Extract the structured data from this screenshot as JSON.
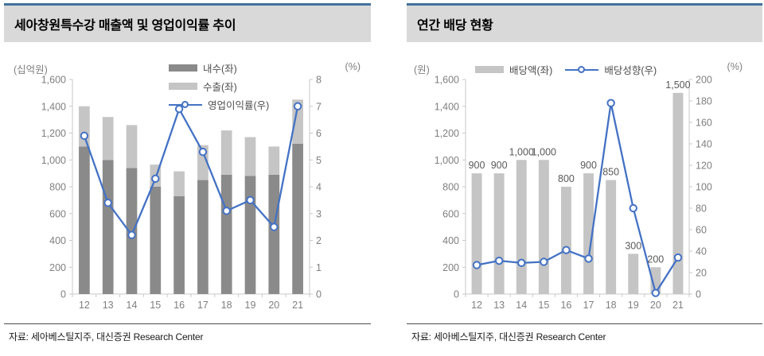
{
  "style": {
    "header_bg": "#d9d9d9",
    "header_accent_line": "#41719c",
    "axis_line_color": "#c9c9c9",
    "tick_text_color": "#7f7f7f",
    "data_label_color": "#595959",
    "line_color": "#4472c4",
    "dark_bar_color": "#8a8a8a",
    "light_bar_color": "#c5c5c5"
  },
  "panels": [
    {
      "title": "세아창원특수강 매출액 및 영업이익률 추이",
      "source": "자료: 세아베스틸지주, 대신증권 Research Center",
      "left_axis_unit": "(십억원)",
      "right_axis_unit": "(%)",
      "legend": [
        {
          "key": "domestic",
          "type": "bar",
          "color": "#8a8a8a",
          "label": "내수(좌)"
        },
        {
          "key": "export",
          "type": "bar",
          "color": "#c5c5c5",
          "label": "수출(좌)"
        },
        {
          "key": "operating-margin",
          "type": "line",
          "color": "#4472c4",
          "label": "영업이익률(우)"
        }
      ],
      "chart_data": {
        "type": "bar",
        "subtype": "stacked-bar-with-line",
        "categories": [
          "12",
          "13",
          "14",
          "15",
          "16",
          "17",
          "18",
          "19",
          "20",
          "21"
        ],
        "series": [
          {
            "key": "domestic",
            "name": "내수(좌)",
            "kind": "bar",
            "axis": "left",
            "color": "#8a8a8a",
            "values": [
              1100,
              1000,
              940,
              800,
              730,
              850,
              890,
              880,
              890,
              1120
            ]
          },
          {
            "key": "export",
            "name": "수출(좌)",
            "kind": "bar",
            "axis": "left",
            "color": "#c5c5c5",
            "values": [
              300,
              320,
              320,
              165,
              185,
              260,
              330,
              290,
              210,
              330
            ]
          },
          {
            "key": "operating-margin",
            "name": "영업이익률(우)",
            "kind": "line",
            "axis": "right",
            "color": "#4472c4",
            "values": [
              5.9,
              3.4,
              2.2,
              4.3,
              6.9,
              5.3,
              3.1,
              3.5,
              2.5,
              7.0
            ]
          }
        ],
        "left_axis": {
          "label": "(십억원)",
          "min": 0,
          "max": 1600,
          "tick_step": 200,
          "ticks": [
            "0",
            "200",
            "400",
            "600",
            "800",
            "1,000",
            "1,200",
            "1,400",
            "1,600"
          ]
        },
        "right_axis": {
          "label": "(%)",
          "min": 0,
          "max": 8,
          "tick_step": 1,
          "ticks": [
            "0",
            "1",
            "2",
            "3",
            "4",
            "5",
            "6",
            "7",
            "8"
          ]
        },
        "grid": false,
        "legend_position": "top-center-vertical"
      }
    },
    {
      "title": "연간 배당 현황",
      "source": "자료: 세아베스틸지주, 대신증권 Research Center",
      "left_axis_unit": "(원)",
      "right_axis_unit": "(%)",
      "legend": [
        {
          "key": "dividend",
          "type": "bar",
          "color": "#c5c5c5",
          "label": "배당액(좌)"
        },
        {
          "key": "payout-ratio",
          "type": "line",
          "color": "#4472c4",
          "label": "배당성향(우)"
        }
      ],
      "chart_data": {
        "type": "bar",
        "subtype": "bar-with-line",
        "categories": [
          "12",
          "13",
          "14",
          "15",
          "16",
          "17",
          "18",
          "19",
          "20",
          "21"
        ],
        "series": [
          {
            "key": "dividend",
            "name": "배당액(좌)",
            "kind": "bar",
            "axis": "left",
            "color": "#c5c5c5",
            "values": [
              900,
              900,
              1000,
              1000,
              800,
              900,
              850,
              300,
              200,
              1500
            ],
            "labels": [
              "900",
              "900",
              "1,000",
              "1,000",
              "800",
              "900",
              "850",
              "300",
              "200",
              "1,500"
            ]
          },
          {
            "key": "payout-ratio",
            "name": "배당성향(우)",
            "kind": "line",
            "axis": "right",
            "color": "#4472c4",
            "values": [
              27,
              31,
              29,
              30,
              41,
              33,
              178,
              80,
              1,
              34
            ]
          }
        ],
        "left_axis": {
          "label": "(원)",
          "min": 0,
          "max": 1600,
          "tick_step": 200,
          "ticks": [
            "0",
            "200",
            "400",
            "600",
            "800",
            "1,000",
            "1,200",
            "1,400",
            "1,600"
          ]
        },
        "right_axis": {
          "label": "(%)",
          "min": 0,
          "max": 200,
          "tick_step": 20,
          "ticks": [
            "0",
            "20",
            "40",
            "60",
            "80",
            "100",
            "120",
            "140",
            "160",
            "180",
            "200"
          ]
        },
        "grid": false,
        "legend_position": "top-horizontal"
      }
    }
  ]
}
